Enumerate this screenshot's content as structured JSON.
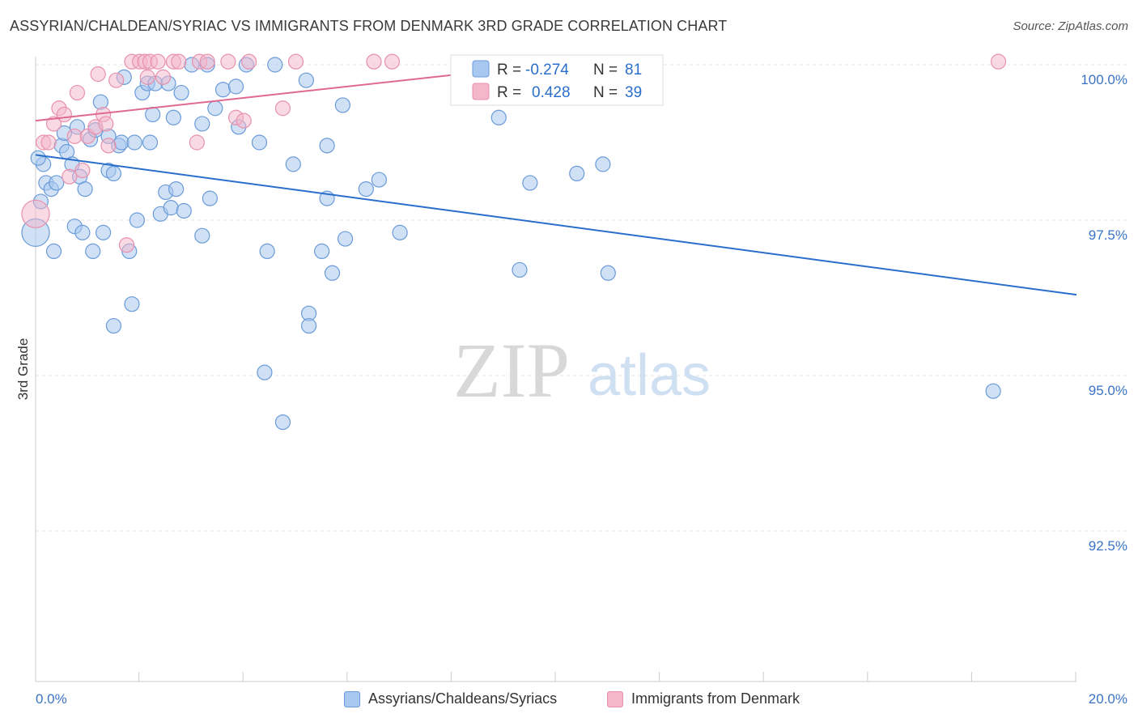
{
  "header": {
    "title": "ASSYRIAN/CHALDEAN/SYRIAC VS IMMIGRANTS FROM DENMARK 3RD GRADE CORRELATION CHART",
    "source": "Source: ZipAtlas.com"
  },
  "watermark": {
    "zip": "ZIP",
    "atlas": "atlas"
  },
  "colors": {
    "blue_fill": "#a9c8ef",
    "blue_stroke": "#6a9bd8",
    "blue_line": "#2a6ecb",
    "pink_fill": "#f4b6c9",
    "pink_stroke": "#e890ac",
    "pink_line": "#e0698f",
    "axis_text_blue": "#3a73c4"
  },
  "legend_box": {
    "rows": [
      {
        "r_label": "R =",
        "r_value": "-0.274",
        "n_label": "N =",
        "n_value": "81"
      },
      {
        "r_label": "R =",
        "r_value": "0.428",
        "n_label": "N =",
        "n_value": "39"
      }
    ]
  },
  "legend_bottom": {
    "items": [
      "Assyrians/Chaldeans/Syriacs",
      "Immigrants from Denmark"
    ]
  },
  "chart_data": {
    "type": "scatter",
    "title": "ASSYRIAN/CHALDEAN/SYRIAC VS IMMIGRANTS FROM DENMARK 3RD GRADE CORRELATION CHART",
    "xlabel": "",
    "ylabel": "3rd Grade",
    "xlim": [
      0,
      20
    ],
    "ylim": [
      90.2,
      100.5
    ],
    "x_tick_labels": [
      {
        "value": 0,
        "label": "0.0%"
      },
      {
        "value": 20,
        "label": "20.0%"
      }
    ],
    "x_minor_ticks": [
      2,
      4,
      6,
      8,
      10,
      12,
      14,
      16,
      18,
      20
    ],
    "y_ticks": [
      {
        "value": 100.0,
        "label": "100.0%"
      },
      {
        "value": 97.5,
        "label": "97.5%"
      },
      {
        "value": 95.0,
        "label": "95.0%"
      },
      {
        "value": 92.5,
        "label": "92.5%"
      }
    ],
    "grid": true,
    "series": [
      {
        "name": "Assyrians/Chaldeans/Syriacs",
        "color": "#a9c8ef",
        "R": -0.274,
        "N": 81,
        "trend": {
          "x": [
            0,
            20
          ],
          "y": [
            98.55,
            96.3
          ]
        },
        "points": [
          [
            0.0,
            97.3,
            2
          ],
          [
            0.1,
            97.8,
            1
          ],
          [
            0.15,
            98.4,
            1
          ],
          [
            0.2,
            98.1,
            1
          ],
          [
            0.3,
            98.0,
            1
          ],
          [
            0.35,
            97.0,
            1
          ],
          [
            0.4,
            98.1,
            1
          ],
          [
            0.5,
            98.7,
            1
          ],
          [
            0.55,
            98.9,
            1
          ],
          [
            0.6,
            98.6,
            1
          ],
          [
            0.7,
            98.4,
            1
          ],
          [
            0.75,
            97.4,
            1
          ],
          [
            0.8,
            99.0,
            1
          ],
          [
            0.85,
            98.2,
            1
          ],
          [
            0.9,
            97.3,
            1
          ],
          [
            0.95,
            98.0,
            1
          ],
          [
            1.05,
            98.8,
            1
          ],
          [
            1.1,
            97.0,
            1
          ],
          [
            1.15,
            98.95,
            1
          ],
          [
            1.25,
            99.4,
            1
          ],
          [
            1.3,
            97.3,
            1
          ],
          [
            1.4,
            98.3,
            1
          ],
          [
            1.4,
            98.85,
            1
          ],
          [
            1.5,
            98.25,
            1
          ],
          [
            1.5,
            95.8,
            1
          ],
          [
            1.6,
            98.7,
            1
          ],
          [
            1.65,
            98.75,
            1
          ],
          [
            1.7,
            99.8,
            1
          ],
          [
            1.8,
            97.0,
            1
          ],
          [
            1.85,
            96.15,
            1
          ],
          [
            1.9,
            98.75,
            1
          ],
          [
            1.95,
            97.5,
            1
          ],
          [
            2.05,
            99.55,
            1
          ],
          [
            2.15,
            99.7,
            1
          ],
          [
            2.2,
            98.75,
            1
          ],
          [
            2.25,
            99.2,
            1
          ],
          [
            2.3,
            99.7,
            1
          ],
          [
            2.4,
            97.6,
            1
          ],
          [
            2.5,
            97.95,
            1
          ],
          [
            2.55,
            99.7,
            1
          ],
          [
            2.6,
            97.7,
            1
          ],
          [
            2.65,
            99.15,
            1
          ],
          [
            2.7,
            98.0,
            1
          ],
          [
            2.8,
            99.55,
            1
          ],
          [
            2.85,
            97.65,
            1
          ],
          [
            3.0,
            100.0,
            1
          ],
          [
            3.2,
            99.05,
            1
          ],
          [
            3.2,
            97.25,
            1
          ],
          [
            3.3,
            100.0,
            1
          ],
          [
            3.35,
            97.85,
            1
          ],
          [
            3.45,
            99.3,
            1
          ],
          [
            3.6,
            99.6,
            1
          ],
          [
            3.85,
            99.65,
            1
          ],
          [
            3.9,
            99.0,
            1
          ],
          [
            4.05,
            100.0,
            1
          ],
          [
            4.3,
            98.75,
            1
          ],
          [
            4.4,
            95.05,
            1
          ],
          [
            4.45,
            97.0,
            1
          ],
          [
            4.6,
            100.0,
            1
          ],
          [
            4.75,
            94.25,
            1
          ],
          [
            4.95,
            98.4,
            1
          ],
          [
            5.2,
            99.75,
            1
          ],
          [
            5.25,
            96.0,
            1
          ],
          [
            5.25,
            95.8,
            1
          ],
          [
            5.5,
            97.0,
            1
          ],
          [
            5.6,
            97.85,
            1
          ],
          [
            5.6,
            98.7,
            1
          ],
          [
            5.7,
            96.65,
            1
          ],
          [
            5.9,
            99.35,
            1
          ],
          [
            5.95,
            97.2,
            1
          ],
          [
            6.35,
            98.0,
            1
          ],
          [
            6.6,
            98.15,
            1
          ],
          [
            7.0,
            97.3,
            1
          ],
          [
            8.9,
            99.15,
            1
          ],
          [
            9.3,
            96.7,
            1
          ],
          [
            9.5,
            98.1,
            1
          ],
          [
            10.4,
            98.25,
            1
          ],
          [
            10.9,
            98.4,
            1
          ],
          [
            11.0,
            96.65,
            1
          ],
          [
            18.4,
            94.75,
            1
          ],
          [
            0.05,
            98.5,
            1
          ]
        ]
      },
      {
        "name": "Immigrants from Denmark",
        "color": "#f4b6c9",
        "R": 0.428,
        "N": 39,
        "trend": {
          "x": [
            0,
            9.8
          ],
          "y": [
            99.1,
            100.0
          ]
        },
        "points": [
          [
            0.0,
            97.6,
            2
          ],
          [
            0.15,
            98.75,
            1
          ],
          [
            0.25,
            98.75,
            1
          ],
          [
            0.35,
            99.05,
            1
          ],
          [
            0.45,
            99.3,
            1
          ],
          [
            0.55,
            99.2,
            1
          ],
          [
            0.65,
            98.2,
            1
          ],
          [
            0.75,
            98.85,
            1
          ],
          [
            0.8,
            99.55,
            1
          ],
          [
            0.9,
            98.3,
            1
          ],
          [
            1.0,
            98.85,
            1
          ],
          [
            1.15,
            99.0,
            1
          ],
          [
            1.2,
            99.85,
            1
          ],
          [
            1.3,
            99.2,
            1
          ],
          [
            1.35,
            99.05,
            1
          ],
          [
            1.4,
            98.7,
            1
          ],
          [
            1.55,
            99.75,
            1
          ],
          [
            1.75,
            97.1,
            1
          ],
          [
            1.85,
            100.05,
            1
          ],
          [
            2.0,
            100.05,
            1
          ],
          [
            2.1,
            100.05,
            1
          ],
          [
            2.15,
            99.8,
            1
          ],
          [
            2.2,
            100.05,
            1
          ],
          [
            2.35,
            100.05,
            1
          ],
          [
            2.45,
            99.8,
            1
          ],
          [
            2.65,
            100.05,
            1
          ],
          [
            2.75,
            100.05,
            1
          ],
          [
            3.1,
            98.75,
            1
          ],
          [
            3.15,
            100.05,
            1
          ],
          [
            3.3,
            100.05,
            1
          ],
          [
            3.7,
            100.05,
            1
          ],
          [
            3.85,
            99.15,
            1
          ],
          [
            4.0,
            99.1,
            1
          ],
          [
            4.1,
            100.05,
            1
          ],
          [
            4.75,
            99.3,
            1
          ],
          [
            5.0,
            100.05,
            1
          ],
          [
            6.5,
            100.05,
            1
          ],
          [
            6.85,
            100.05,
            1
          ],
          [
            18.5,
            100.05,
            1
          ]
        ]
      }
    ]
  }
}
